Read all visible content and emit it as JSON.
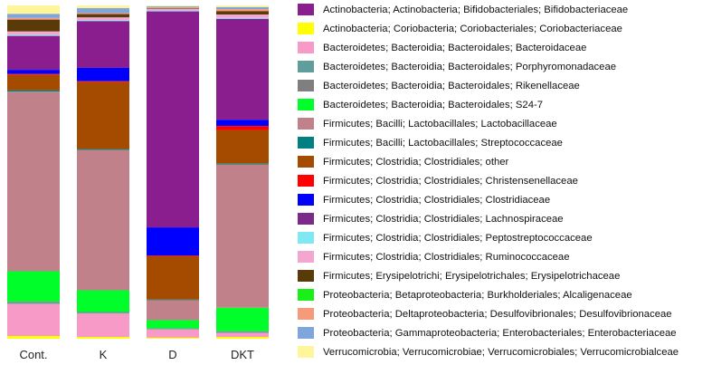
{
  "chart_data": {
    "type": "bar",
    "stacked": true,
    "normalized": true,
    "categories": [
      "Cont.",
      "K",
      "D",
      "DKT"
    ],
    "ylim": [
      0,
      1
    ],
    "series": [
      {
        "name": "Actinobacteria; Actinobacteria; Bifidobacteriales; Bifidobacteriaceae",
        "color": "#8B1E8F",
        "values": [
          0.1,
          0.14,
          0.65,
          0.3
        ]
      },
      {
        "name": "Actinobacteria; Coriobacteria; Coriobacteriales; Coriobacteriaceae",
        "color": "#FFFF00",
        "values": [
          0.008,
          0.005,
          0.003,
          0.005
        ]
      },
      {
        "name": "Bacteroidetes; Bacteroidia; Bacteroidales; Bacteroidaceae",
        "color": "#F79AC8",
        "values": [
          0.095,
          0.07,
          0.025,
          0.012
        ]
      },
      {
        "name": "Bacteroidetes; Bacteroidia; Bacteroidales; Porphyromonadaceae",
        "color": "#5F9E9A",
        "values": [
          0.004,
          0.003,
          0.002,
          0.003
        ]
      },
      {
        "name": "Bacteroidetes; Bacteroidia; Bacteroidales; Rikenellaceae",
        "color": "#7F7F7F",
        "values": [
          0.002,
          0.002,
          0.001,
          0.002
        ]
      },
      {
        "name": "Bacteroidetes; Bacteroidia; Bacteroidales; S24-7",
        "color": "#00FF2A",
        "values": [
          0.09,
          0.065,
          0.025,
          0.07
        ]
      },
      {
        "name": "Firmicutes; Bacilli; Lactobacillales; Lactobacillaceae",
        "color": "#C0818A",
        "values": [
          0.53,
          0.42,
          0.06,
          0.425
        ]
      },
      {
        "name": "Firmicutes; Bacilli; Lactobacillales; Streptococcaceae",
        "color": "#008080",
        "values": [
          0.004,
          0.003,
          0.002,
          0.003
        ]
      },
      {
        "name": "Firmicutes; Clostridia; Clostridiales; other",
        "color": "#A54B00",
        "values": [
          0.045,
          0.2,
          0.13,
          0.1
        ]
      },
      {
        "name": "Firmicutes; Clostridia; Clostridiales; Christensenellaceae",
        "color": "#FF0000",
        "values": [
          0.003,
          0.003,
          0.002,
          0.012
        ]
      },
      {
        "name": "Firmicutes; Clostridia; Clostridiales; Clostridiaceae",
        "color": "#0000FF",
        "values": [
          0.012,
          0.04,
          0.085,
          0.018
        ]
      },
      {
        "name": "Firmicutes; Clostridia; Clostridiales; Lachnospiraceae",
        "color": "#7B2A8A",
        "values": [
          0.0,
          0.0,
          0.0,
          0.0
        ]
      },
      {
        "name": "Firmicutes; Clostridia; Clostridiales; Peptostreptococcaceae",
        "color": "#7FE8F2",
        "values": [
          0.003,
          0.003,
          0.003,
          0.003
        ]
      },
      {
        "name": "Firmicutes; Clostridia; Clostridiales; Ruminococcaceae",
        "color": "#F4A6D0",
        "values": [
          0.01,
          0.008,
          0.005,
          0.01
        ]
      },
      {
        "name": "Firmicutes; Erysipelotrichi; Erysipelotrichales; Erysipelotrichaceae",
        "color": "#5B3A0A",
        "values": [
          0.035,
          0.01,
          0.002,
          0.01
        ]
      },
      {
        "name": "Proteobacteria; Betaproteobacteria; Burkholderiales; Alcaligenaceae",
        "color": "#18F018",
        "values": [
          0.0,
          0.0,
          0.0,
          0.0
        ]
      },
      {
        "name": "Proteobacteria; Deltaproteobacteria; Desulfovibrionales; Desulfovibrionaceae",
        "color": "#F79A7A",
        "values": [
          0.005,
          0.003,
          0.002,
          0.006
        ]
      },
      {
        "name": "Proteobacteria; Gammaproteobacteria; Enterobacteriales; Enterobacteriaceae",
        "color": "#7FA6DC",
        "values": [
          0.012,
          0.015,
          0.003,
          0.006
        ]
      },
      {
        "name": "Verrucomicrobia; Verrucomicrobiae; Verrucomicrobiales; Verrucomicrobialceae",
        "color": "#FFF59A",
        "values": [
          0.025,
          0.008,
          0.003,
          0.005
        ]
      }
    ]
  }
}
